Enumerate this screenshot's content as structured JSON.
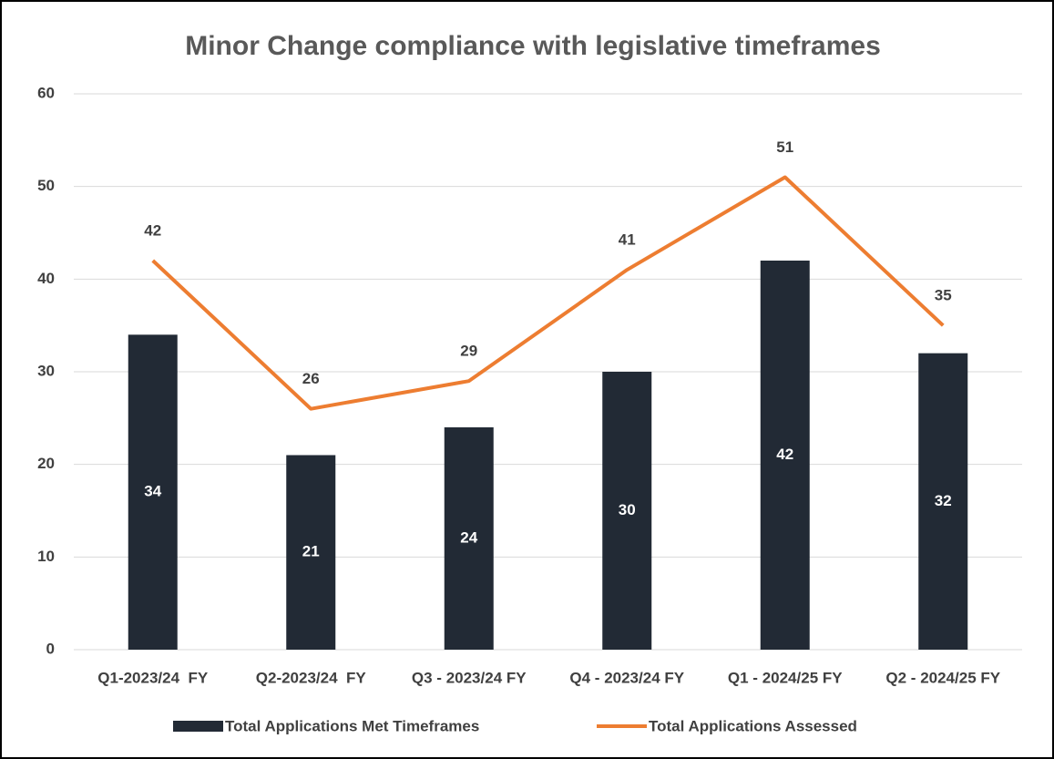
{
  "chart_data": {
    "type": "bar",
    "title": "Minor Change compliance with legislative timeframes",
    "categories": [
      "Q1-2023/24  FY",
      "Q2-2023/24  FY",
      "Q3 - 2023/24 FY",
      "Q4 - 2023/24 FY",
      "Q1 - 2024/25 FY",
      "Q2 - 2024/25 FY"
    ],
    "series": [
      {
        "name": "Total Applications Met Timeframes",
        "type": "bar",
        "color": "#222a35",
        "values": [
          34,
          21,
          24,
          30,
          42,
          32
        ]
      },
      {
        "name": "Total Applications Assessed",
        "type": "line",
        "color": "#ed7d31",
        "values": [
          42,
          26,
          29,
          41,
          51,
          35
        ]
      }
    ],
    "ylim": [
      0,
      60
    ],
    "yticks": [
      0,
      10,
      20,
      30,
      40,
      50,
      60
    ],
    "grid": true,
    "legend": "bottom"
  }
}
